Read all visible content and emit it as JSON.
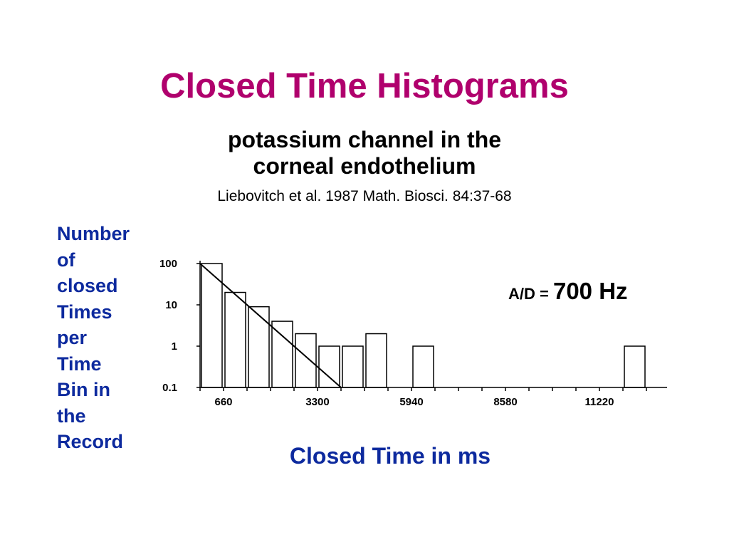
{
  "slide": {
    "title": "Closed Time Histograms",
    "subtitle_line1": "potassium channel in the",
    "subtitle_line2": "corneal endothelium",
    "citation": "Liebovitch et al. 1987 Math. Biosci. 84:37-68",
    "ad_label": "A/D = ",
    "ad_value": "700 Hz"
  },
  "chart_data": {
    "type": "bar",
    "title": "",
    "xlabel": "Closed Time in ms",
    "ylabel_lines": [
      "Number",
      "of",
      "closed",
      "Times",
      "per",
      "Time",
      "Bin in",
      "the",
      "Record"
    ],
    "y_scale": "log",
    "ylim": [
      0.1,
      100
    ],
    "y_ticks": [
      "100",
      "10",
      "1",
      "0.1"
    ],
    "x_ticks": [
      "660",
      "3300",
      "5940",
      "8580",
      "11220"
    ],
    "bar_width_ms": 660,
    "bins_start_ms": [
      0,
      660,
      1320,
      1980,
      2640,
      3300,
      3960,
      4620,
      5940,
      11880
    ],
    "values": [
      100,
      20,
      9,
      4,
      2,
      1,
      1,
      2,
      1,
      1
    ],
    "fit_line": {
      "x": [
        0,
        3960
      ],
      "y": [
        100,
        0.1
      ]
    },
    "colors": {
      "bars_fill": "#ffffff",
      "bars_stroke": "#000000"
    }
  }
}
